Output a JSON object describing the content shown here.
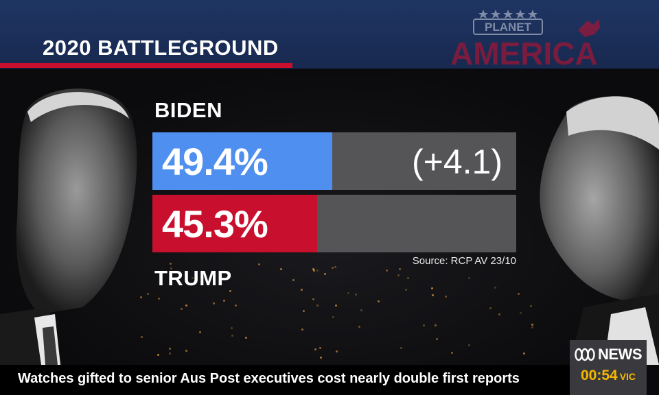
{
  "header": {
    "title": "2020 BATTLEGROUND"
  },
  "logo": {
    "line1": "PLANET",
    "line2": "AMERICA",
    "color": "#c8102e"
  },
  "chart_data": {
    "type": "bar",
    "orientation": "horizontal",
    "categories": [
      "BIDEN",
      "TRUMP"
    ],
    "values": [
      49.4,
      45.3
    ],
    "value_labels": [
      "49.4%",
      "45.3%"
    ],
    "colors": [
      "#4f8ff0",
      "#c8102e"
    ],
    "xlim": [
      0,
      100
    ],
    "margin_label": "(+4.1)",
    "source": "Source: RCP AV 23/10"
  },
  "ticker": {
    "headline": "Watches gifted to senior Aus Post executives cost nearly double first reports"
  },
  "bug": {
    "brand": "NEWS",
    "time": "00:54",
    "zone": "VIC",
    "time_color": "#f5b800"
  }
}
